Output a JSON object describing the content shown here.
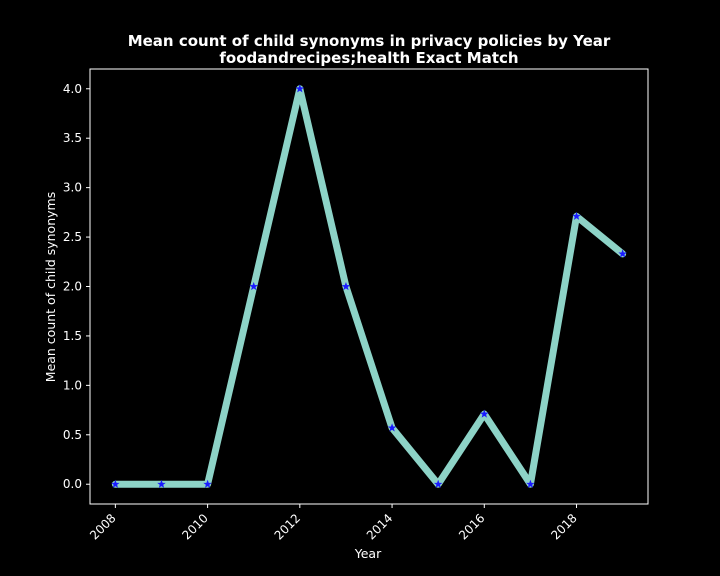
{
  "chart_data": {
    "type": "line",
    "title": "Mean count of child synonyms in privacy policies by Year",
    "subtitle": "foodandrecipes;health Exact Match",
    "xlabel": "Year",
    "ylabel": "Mean count of child synonyms",
    "x": [
      2008,
      2009,
      2010,
      2011,
      2012,
      2013,
      2014,
      2015,
      2016,
      2017,
      2018,
      2019
    ],
    "series": [
      {
        "values": [
          0.0,
          0.0,
          0.0,
          2.0,
          4.0,
          2.0,
          0.57,
          0.0,
          0.71,
          0.0,
          2.71,
          2.33
        ]
      }
    ],
    "xlim": [
      2007.45,
      2019.55
    ],
    "ylim": [
      -0.2,
      4.2
    ],
    "xticks": [
      2008,
      2010,
      2012,
      2014,
      2016,
      2018
    ],
    "xtick_labels": [
      "2008",
      "2010",
      "2012",
      "2014",
      "2016",
      "2018"
    ],
    "yticks": [
      0.0,
      0.5,
      1.0,
      1.5,
      2.0,
      2.5,
      3.0,
      3.5,
      4.0
    ],
    "ytick_labels": [
      "0.0",
      "0.5",
      "1.0",
      "1.5",
      "2.0",
      "2.5",
      "3.0",
      "3.5",
      "4.0"
    ],
    "grid": false,
    "colors": {
      "line": "#8dd3c7",
      "marker": "#1a1aff",
      "background": "#000000",
      "axes": "#ffffff"
    }
  }
}
